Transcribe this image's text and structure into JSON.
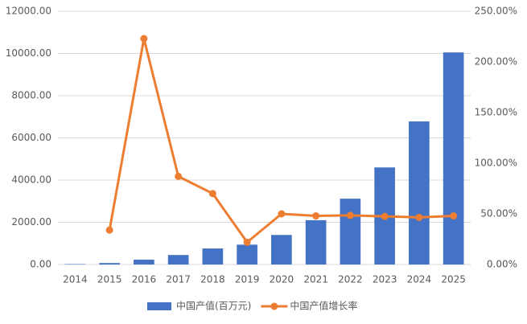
{
  "chart_data": {
    "type": "bar",
    "categories": [
      "2014",
      "2015",
      "2016",
      "2017",
      "2018",
      "2019",
      "2020",
      "2021",
      "2022",
      "2023",
      "2024",
      "2025"
    ],
    "series": [
      {
        "name": "中国产值(百万元)",
        "type": "bar",
        "color": "#4472c4",
        "values": [
          20,
          70,
          230,
          450,
          760,
          940,
          1400,
          2100,
          3120,
          4600,
          6780,
          10050
        ]
      },
      {
        "name": "中国产值增长率",
        "type": "line",
        "axis": "y2",
        "color": "#ed7d31",
        "values": [
          null,
          34,
          223,
          87,
          70,
          22,
          50,
          48,
          48.5,
          47.5,
          46.5,
          48
        ]
      }
    ],
    "ylim": [
      0,
      12000
    ],
    "yticks": [
      {
        "value": 0,
        "label": "0.00"
      },
      {
        "value": 2000,
        "label": "2000.00"
      },
      {
        "value": 4000,
        "label": "4000.00"
      },
      {
        "value": 6000,
        "label": "6000.00"
      },
      {
        "value": 8000,
        "label": "8000.00"
      },
      {
        "value": 10000,
        "label": "10000.00"
      },
      {
        "value": 12000,
        "label": "12000.00"
      }
    ],
    "y2lim": [
      0,
      250
    ],
    "y2ticks": [
      {
        "value": 0,
        "label": "0.00%"
      },
      {
        "value": 50,
        "label": "50.00%"
      },
      {
        "value": 100,
        "label": "100.00%"
      },
      {
        "value": 150,
        "label": "150.00%"
      },
      {
        "value": 200,
        "label": "200.00%"
      },
      {
        "value": 250,
        "label": "250.00%"
      }
    ],
    "grid": true,
    "legend": "bottom"
  }
}
